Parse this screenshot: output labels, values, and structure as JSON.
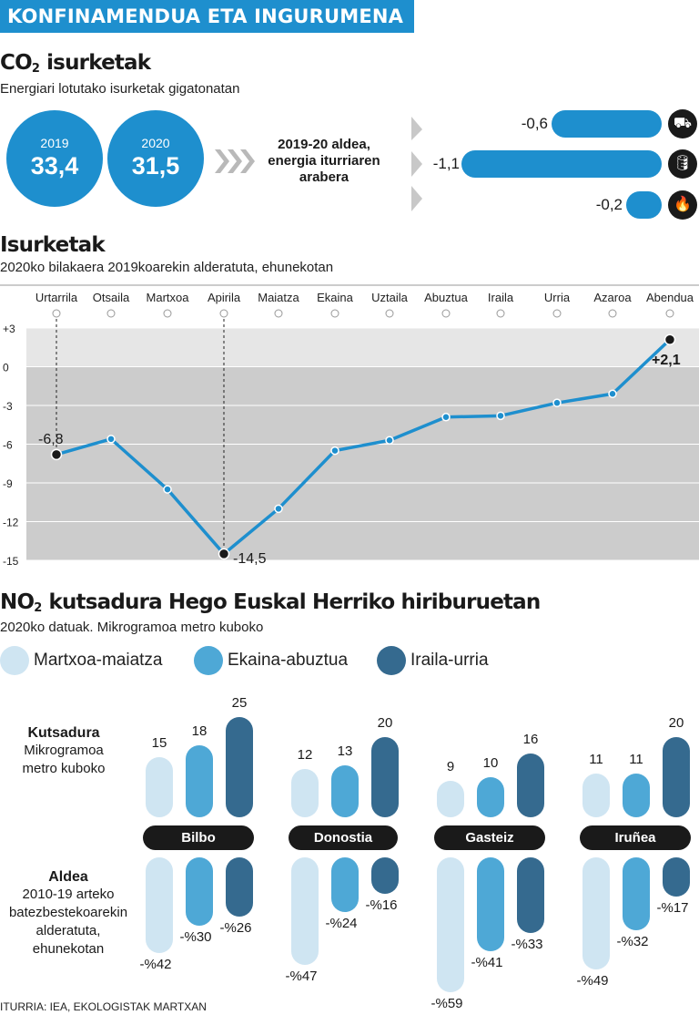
{
  "banner": "KONFINAMENDUA ETA INGURUMENA",
  "co2": {
    "title_main": "CO",
    "title_sub": "2",
    "title_rest": " isurketak",
    "subtitle": "Energiari lotutako isurketak gigatonatan",
    "years": [
      {
        "year": "2019",
        "value": "33,4"
      },
      {
        "year": "2020",
        "value": "31,5"
      }
    ],
    "diff_label_1": "2019-20 aldea,",
    "diff_label_2": "energia iturriaren",
    "diff_label_3": "arabera",
    "sources": [
      {
        "value": -0.6,
        "label": "-0,6",
        "icon": "coal-cart-icon",
        "glyph": "⛟"
      },
      {
        "value": -1.1,
        "label": "-1,1",
        "icon": "oil-drop-icon",
        "glyph": "🛢"
      },
      {
        "value": -0.2,
        "label": "-0,2",
        "icon": "gas-flame-icon",
        "glyph": "🔥"
      }
    ]
  },
  "emissions": {
    "title": "Isurketak",
    "subtitle": "2020ko bilakaera 2019koarekin alderatuta, ehunekotan"
  },
  "no2": {
    "title_main": "NO",
    "title_sub": "2",
    "title_rest": " kutsadura Hego Euskal Herriko hiriburuetan",
    "subtitle": "2020ko datuak. Mikrogramoa metro kuboko",
    "legend": [
      {
        "label": "Martxoa-maiatza",
        "color": "#cfe5f2"
      },
      {
        "label": "Ekaina-abuztua",
        "color": "#4ea8d6"
      },
      {
        "label": "Iraila-urria",
        "color": "#356a8f"
      }
    ],
    "row1_title": "Kutsadura",
    "row1_desc_1": "Mikrogramoa",
    "row1_desc_2": "metro kuboko",
    "row2_title": "Aldea",
    "row2_desc_1": "2010-19 arteko",
    "row2_desc_2": "batezbestekoarekin",
    "row2_desc_3": "alderatuta,",
    "row2_desc_4": "ehunekotan"
  },
  "source": "ITURRIA: IEA, EKOLOGISTAK MARTXAN",
  "chart_data": [
    {
      "type": "line",
      "title": "Isurketak",
      "subtitle": "2020ko bilakaera 2019koarekin alderatuta, ehunekotan",
      "categories": [
        "Urtarrila",
        "Otsaila",
        "Martxoa",
        "Apirila",
        "Maiatza",
        "Ekaina",
        "Uztaila",
        "Abuztua",
        "Iraila",
        "Urria",
        "Azaroa",
        "Abendua"
      ],
      "values": [
        -6.8,
        -5.6,
        -9.5,
        -14.5,
        -11.0,
        -6.5,
        -5.7,
        -3.9,
        -3.8,
        -2.8,
        -2.1,
        2.1
      ],
      "highlight_labels": [
        {
          "index": 0,
          "label": "-6,8"
        },
        {
          "index": 3,
          "label": "-14,5"
        },
        {
          "index": 11,
          "label": "+2,1"
        }
      ],
      "yticks": [
        "+3",
        "0",
        "-3",
        "-6",
        "-9",
        "-12",
        "-15"
      ],
      "ylim": [
        -15,
        3
      ],
      "line_color": "#1e8fce"
    },
    {
      "type": "bar",
      "title": "Kutsadura",
      "categories": [
        "Bilbo",
        "Donostia",
        "Gasteiz",
        "Iruñea"
      ],
      "series": [
        {
          "name": "Martxoa-maiatza",
          "values": [
            15,
            12,
            9,
            11
          ],
          "labels": [
            "15",
            "12",
            "9",
            "11"
          ]
        },
        {
          "name": "Ekaina-abuztua",
          "values": [
            18,
            13,
            10,
            11
          ],
          "labels": [
            "18",
            "13",
            "10",
            "11"
          ]
        },
        {
          "name": "Iraila-urria",
          "values": [
            25,
            20,
            16,
            20
          ],
          "labels": [
            "25",
            "20",
            "16",
            "20"
          ]
        }
      ]
    },
    {
      "type": "bar",
      "title": "Aldea",
      "categories": [
        "Bilbo",
        "Donostia",
        "Gasteiz",
        "Iruñea"
      ],
      "series": [
        {
          "name": "Martxoa-maiatza",
          "values": [
            -42,
            -47,
            -59,
            -49
          ],
          "labels": [
            "-%42",
            "-%47",
            "-%59",
            "-%49"
          ]
        },
        {
          "name": "Ekaina-abuztua",
          "values": [
            -30,
            -24,
            -41,
            -32
          ],
          "labels": [
            "-%30",
            "-%24",
            "-%41",
            "-%32"
          ]
        },
        {
          "name": "Iraila-urria",
          "values": [
            -26,
            -16,
            -33,
            -17
          ],
          "labels": [
            "-%26",
            "-%16",
            "-%33",
            "-%17"
          ]
        }
      ]
    }
  ]
}
